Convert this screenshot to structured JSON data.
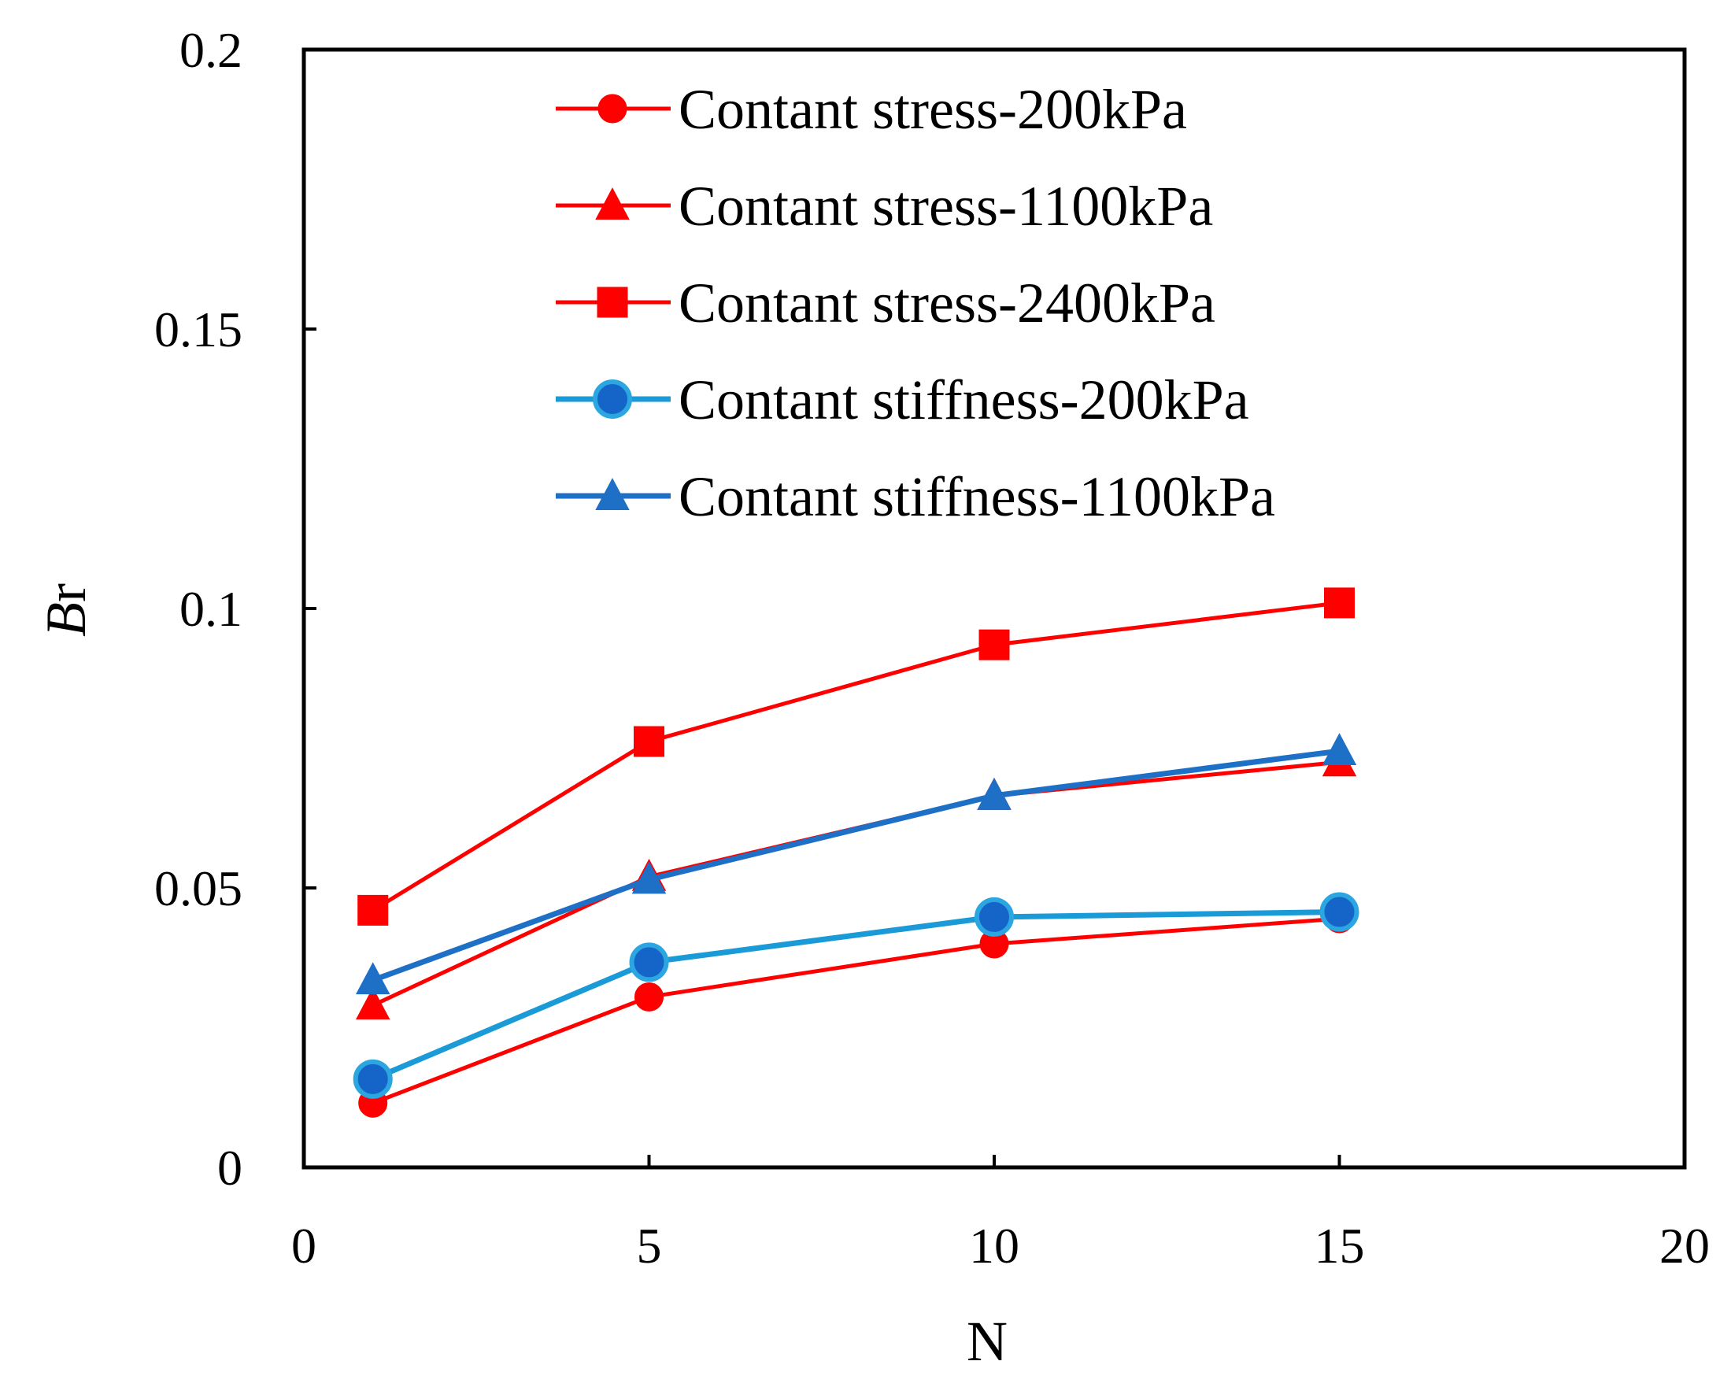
{
  "chart_data": {
    "type": "line",
    "title": "",
    "xlabel": "N",
    "ylabel": {
      "italic": "B",
      "normal": "r"
    },
    "xlim": [
      0,
      20
    ],
    "ylim": [
      0,
      0.2
    ],
    "xticks": [
      0,
      5,
      10,
      15,
      20
    ],
    "xtick_labels": [
      "0",
      "5",
      "10",
      "15",
      "20"
    ],
    "yticks": [
      0,
      0.05,
      0.1,
      0.15,
      0.2
    ],
    "ytick_labels": [
      "0",
      "0.05",
      "0.1",
      "0.15",
      "0.2"
    ],
    "grid": false,
    "legend_position": "top-center",
    "series": [
      {
        "name": "Contant stress-200kPa",
        "marker": "circle",
        "color": "#ff0000",
        "x": [
          1,
          5,
          10,
          15
        ],
        "y": [
          0.0115,
          0.0305,
          0.04,
          0.0445
        ]
      },
      {
        "name": "Contant stress-1100kPa",
        "marker": "triangle",
        "color": "#ff0000",
        "x": [
          1,
          5,
          10,
          15
        ],
        "y": [
          0.029,
          0.052,
          0.0665,
          0.0725
        ]
      },
      {
        "name": "Contant stress-2400kPa",
        "marker": "square",
        "color": "#ff0000",
        "x": [
          1,
          5,
          10,
          15
        ],
        "y": [
          0.046,
          0.0762,
          0.0935,
          0.101
        ]
      },
      {
        "name": "Contant stiffness-200kPa",
        "marker": "circle",
        "color": "#1a9ad6",
        "x": [
          1,
          5,
          10,
          15
        ],
        "y": [
          0.0158,
          0.0367,
          0.0448,
          0.0457
        ]
      },
      {
        "name": "Contant stiffness-1100kPa",
        "marker": "triangle",
        "color": "#1e6fc6",
        "x": [
          1,
          5,
          10,
          15
        ],
        "y": [
          0.0335,
          0.0515,
          0.0665,
          0.0745
        ]
      }
    ]
  }
}
